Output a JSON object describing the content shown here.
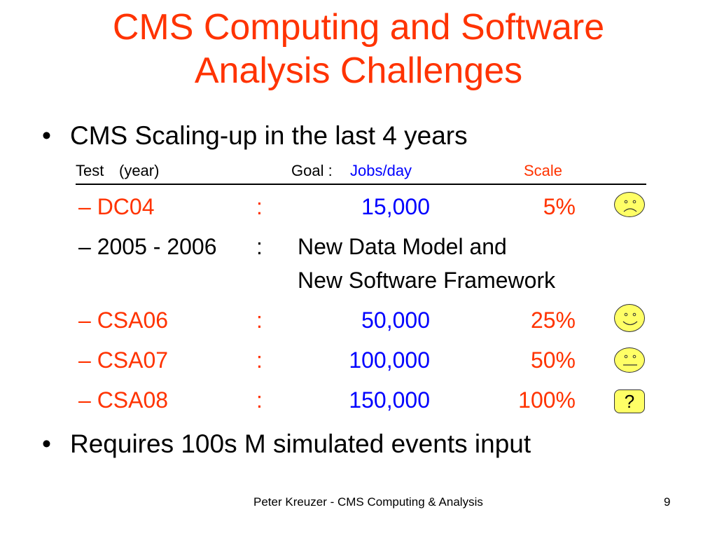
{
  "title": {
    "line1": "CMS Computing and Software",
    "line2": "Analysis Challenges"
  },
  "bullets": [
    {
      "marker": "•",
      "text": "CMS Scaling-up in the last 4 years"
    },
    {
      "marker": "•",
      "text": "Requires 100s M simulated events input"
    }
  ],
  "table_header": {
    "test": "Test",
    "year": "(year)",
    "goal": "Goal :",
    "jobs": "Jobs/day",
    "scale": "Scale"
  },
  "rows": [
    {
      "dash": "–",
      "name": "DC04",
      "colon": ":",
      "jobs": "15,000",
      "scale": "5%",
      "status_icon": "sad-face-icon"
    },
    {
      "dash": "–",
      "name": "2005 - 2006",
      "colon": ":",
      "note_line1": "New Data Model and",
      "note_line2": "New Software Framework"
    },
    {
      "dash": "–",
      "name": "CSA06",
      "colon": ":",
      "jobs": "50,000",
      "scale": "25%",
      "status_icon": "happy-face-icon"
    },
    {
      "dash": "–",
      "name": "CSA07",
      "colon": ":",
      "jobs": "100,000",
      "scale": "50%",
      "status_icon": "neutral-face-icon"
    },
    {
      "dash": "–",
      "name": "CSA08",
      "colon": ":",
      "jobs": "150,000",
      "scale": "100%",
      "status_text": "?"
    }
  ],
  "footer": {
    "text": "Peter Kreuzer - CMS Computing & Analysis",
    "page_number": "9"
  },
  "colors": {
    "accent_red": "#ff3300",
    "value_blue": "#0000ff",
    "face_fill": "#ffff66"
  }
}
